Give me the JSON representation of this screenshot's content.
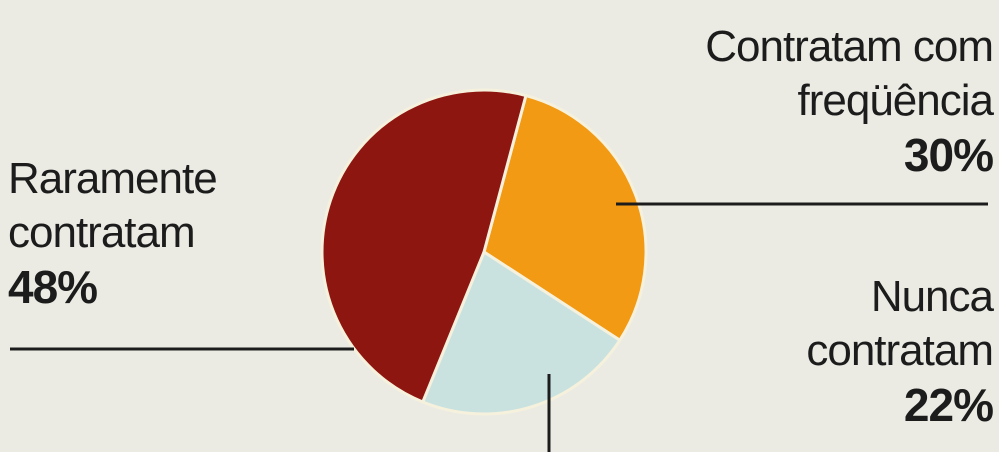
{
  "chart_data": {
    "type": "pie",
    "slices": [
      {
        "label_line1": "Contratam com",
        "label_line2": "freqüência",
        "value": 30,
        "value_text": "30%",
        "color": "#f29a13"
      },
      {
        "label_line1": "Nunca",
        "label_line2": "contratam",
        "value": 22,
        "value_text": "22%",
        "color": "#c9e2e0"
      },
      {
        "label_line1": "Raramente",
        "label_line2": "contratam",
        "value": 48,
        "value_text": "48%",
        "color": "#8e1610"
      }
    ],
    "legend": "none",
    "grid": false
  },
  "colors": {
    "background": "#ebebe4",
    "leader_line": "#1c1c1c",
    "slice_border": "#f6f1dc"
  }
}
